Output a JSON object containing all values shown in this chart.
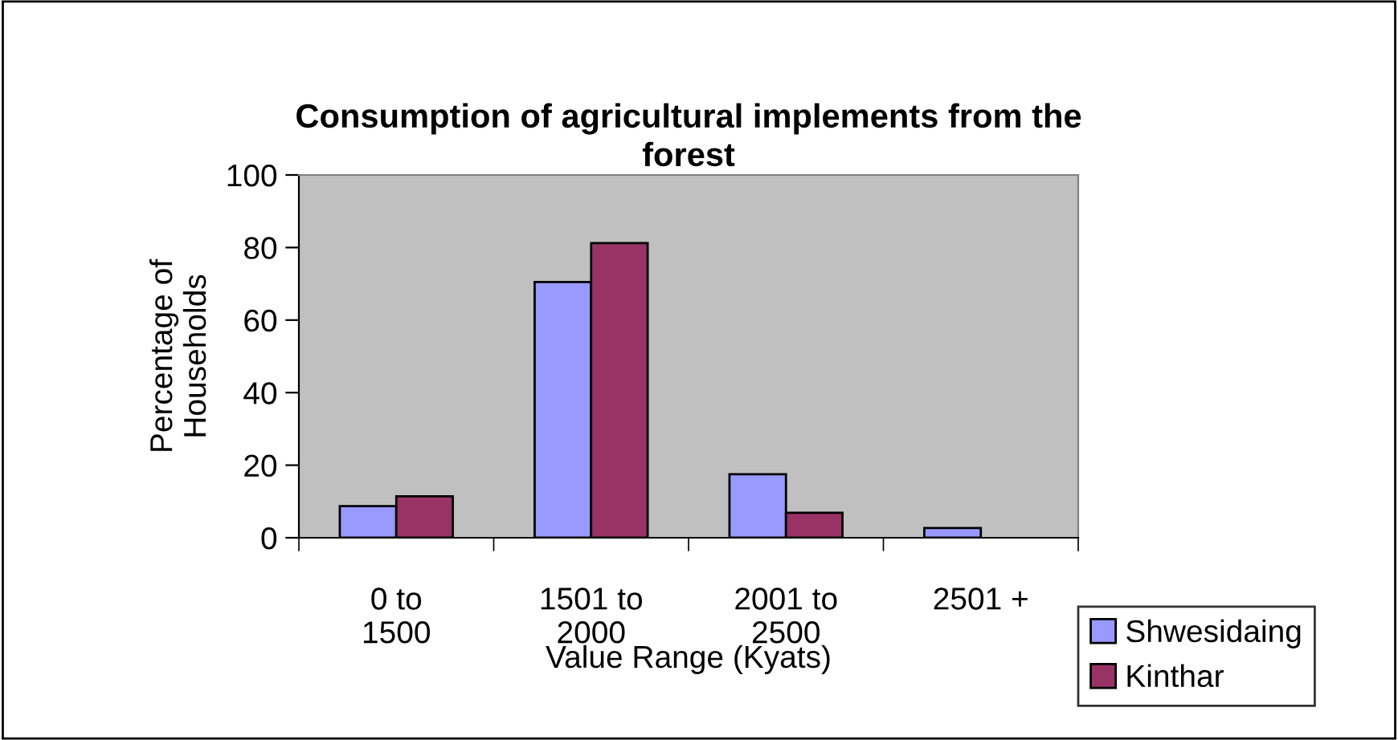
{
  "chart_data": {
    "type": "bar",
    "title": "Consumption of agricultural implements from the\nforest",
    "xlabel": "Value Range (Kyats)",
    "ylabel": "Percentage of\nHouseholds",
    "categories": [
      "0 to\n1500",
      "1501 to\n2000",
      "2001 to\n2500",
      "2501 +"
    ],
    "series": [
      {
        "name": "Shwesidaing",
        "color": "#9999ff",
        "values": [
          8.7,
          70.5,
          17.5,
          2.7
        ]
      },
      {
        "name": "Kinthar",
        "color": "#993366",
        "values": [
          11.4,
          81.2,
          6.9,
          null
        ]
      }
    ],
    "ylim": [
      0,
      100
    ],
    "yticks": [
      0,
      20,
      40,
      60,
      80,
      100
    ],
    "grid": false,
    "legend": "bottom right"
  }
}
